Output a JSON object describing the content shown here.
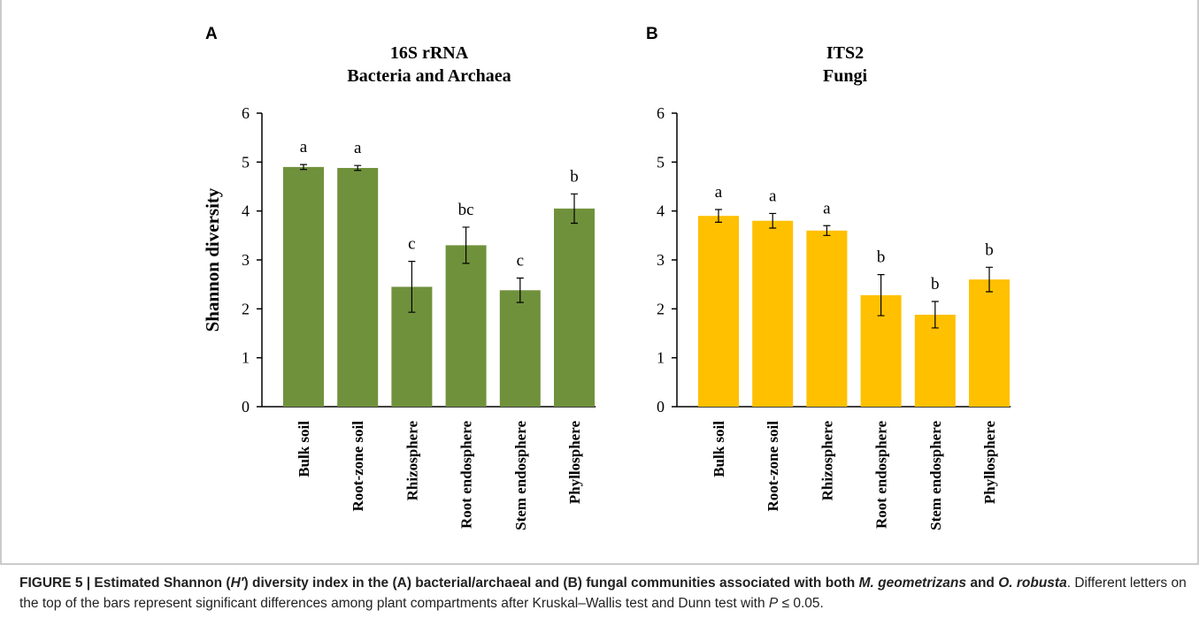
{
  "chart_data": [
    {
      "type": "bar",
      "panel_label": "A",
      "title": "16S rRNA",
      "subtitle": "Bacteria and Archaea",
      "ylabel": "Shannon diversity",
      "categories": [
        "Bulk soil",
        "Root-zone soil",
        "Rhizosphere",
        "Root endosphere",
        "Stem endosphere",
        "Phyllosphere"
      ],
      "values": [
        4.9,
        4.88,
        2.45,
        3.3,
        2.38,
        4.05
      ],
      "errors": [
        0.05,
        0.05,
        0.52,
        0.37,
        0.25,
        0.3
      ],
      "annotations": [
        "a",
        "a",
        "c",
        "bc",
        "c",
        "b"
      ],
      "color": "#70913b",
      "ylim": [
        0,
        6
      ],
      "yticks": [
        0,
        1,
        2,
        3,
        4,
        5,
        6
      ]
    },
    {
      "type": "bar",
      "panel_label": "B",
      "title": "ITS2",
      "subtitle": "Fungi",
      "categories": [
        "Bulk soil",
        "Root-zone soil",
        "Rhizosphere",
        "Root endosphere",
        "Stem endosphere",
        "Phyllosphere"
      ],
      "values": [
        3.9,
        3.8,
        3.6,
        2.28,
        1.88,
        2.6
      ],
      "errors": [
        0.13,
        0.15,
        0.1,
        0.42,
        0.27,
        0.25
      ],
      "annotations": [
        "a",
        "a",
        "a",
        "b",
        "b",
        "b"
      ],
      "color": "#ffc000",
      "ylim": [
        0,
        6
      ],
      "yticks": [
        0,
        1,
        2,
        3,
        4,
        5,
        6
      ]
    }
  ],
  "caption": [
    {
      "text": "FIGURE 5 | Estimated Shannon (",
      "style": "b"
    },
    {
      "text": "H′",
      "style": "bi"
    },
    {
      "text": ") diversity index in the (A) bacterial/archaeal and (B) fungal communities associated with both ",
      "style": "b"
    },
    {
      "text": "M. geometrizans",
      "style": "bi"
    },
    {
      "text": " and ",
      "style": "b"
    },
    {
      "text": "O. robusta",
      "style": "bi"
    },
    {
      "text": ". Different letters on the top of the bars represent significant differences among plant compartments after Kruskal–Wallis test and Dunn test with ",
      "style": "n"
    },
    {
      "text": "P",
      "style": "i"
    },
    {
      "text": " ≤ 0.05.",
      "style": "n"
    }
  ]
}
